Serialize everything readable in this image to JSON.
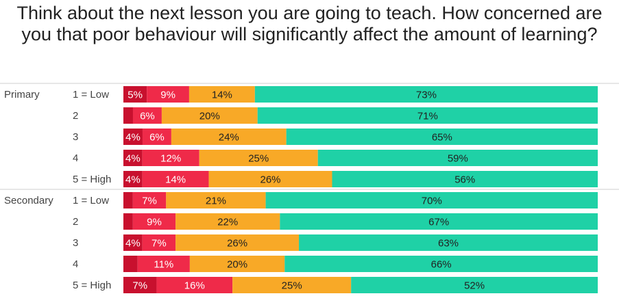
{
  "chart_data": {
    "type": "bar",
    "stacked": true,
    "orientation": "horizontal",
    "percent": true,
    "title": "Think about the next lesson you are going to teach. How concerned are you that poor behaviour will significantly affect the amount of learning?",
    "xlim": [
      0,
      100
    ],
    "grid": false,
    "legend": "none",
    "colors": [
      "#c8102e",
      "#ef2a49",
      "#f8a927",
      "#1fd1a6"
    ],
    "groups": [
      {
        "name": "Primary",
        "categories": [
          "1 = Low",
          "2",
          "3",
          "4",
          "5 = High"
        ],
        "rows": [
          {
            "values": [
              5,
              9,
              14,
              73
            ],
            "labels": [
              "5%",
              "9%",
              "14%",
              "73%"
            ]
          },
          {
            "values": [
              2,
              6,
              20,
              71
            ],
            "labels": [
              "",
              "6%",
              "20%",
              "71%"
            ]
          },
          {
            "values": [
              4,
              6,
              24,
              65
            ],
            "labels": [
              "4%",
              "6%",
              "24%",
              "65%"
            ]
          },
          {
            "values": [
              4,
              12,
              25,
              59
            ],
            "labels": [
              "4%",
              "12%",
              "25%",
              "59%"
            ]
          },
          {
            "values": [
              4,
              14,
              26,
              56
            ],
            "labels": [
              "4%",
              "14%",
              "26%",
              "56%"
            ]
          }
        ]
      },
      {
        "name": "Secondary",
        "categories": [
          "1 = Low",
          "2",
          "3",
          "4",
          "5 = High"
        ],
        "rows": [
          {
            "values": [
              2,
              7,
              21,
              70
            ],
            "labels": [
              "",
              "7%",
              "21%",
              "70%"
            ]
          },
          {
            "values": [
              2,
              9,
              22,
              67
            ],
            "labels": [
              "",
              "9%",
              "22%",
              "67%"
            ]
          },
          {
            "values": [
              4,
              7,
              26,
              63
            ],
            "labels": [
              "4%",
              "7%",
              "26%",
              "63%"
            ]
          },
          {
            "values": [
              3,
              11,
              20,
              66
            ],
            "labels": [
              "",
              "11%",
              "20%",
              "66%"
            ]
          },
          {
            "values": [
              7,
              16,
              25,
              52
            ],
            "labels": [
              "7%",
              "16%",
              "25%",
              "52%"
            ]
          }
        ]
      }
    ]
  }
}
